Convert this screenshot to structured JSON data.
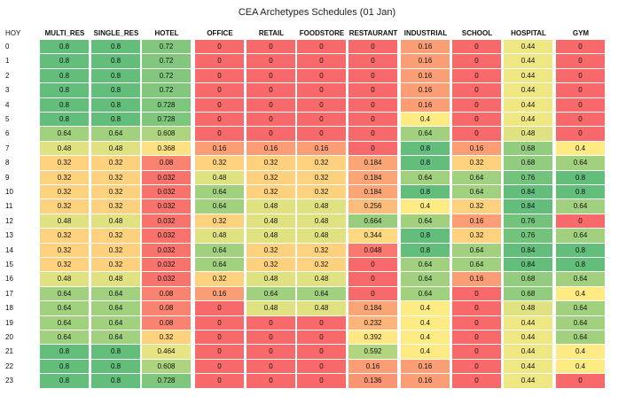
{
  "chart_data": {
    "type": "heatmap",
    "title": "CEA Archetypes Schedules (01 Jan)",
    "row_header": "HOY",
    "columns": [
      "MULTI_RES",
      "SINGLE_RES",
      "HOTEL",
      "OFFICE",
      "RETAIL",
      "FOODSTORE",
      "RESTAURANT",
      "INDUSTRIAL",
      "SCHOOL",
      "HOSPITAL",
      "GYM"
    ],
    "rows": [
      "0",
      "1",
      "2",
      "3",
      "4",
      "5",
      "6",
      "7",
      "8",
      "9",
      "10",
      "11",
      "12",
      "13",
      "14",
      "15",
      "16",
      "17",
      "18",
      "19",
      "20",
      "21",
      "22",
      "23"
    ],
    "values": [
      [
        0.8,
        0.8,
        0.72,
        0,
        0,
        0,
        0,
        0.16,
        0,
        0.44,
        0
      ],
      [
        0.8,
        0.8,
        0.72,
        0,
        0,
        0,
        0,
        0.16,
        0,
        0.44,
        0
      ],
      [
        0.8,
        0.8,
        0.72,
        0,
        0,
        0,
        0,
        0.16,
        0,
        0.44,
        0
      ],
      [
        0.8,
        0.8,
        0.72,
        0,
        0,
        0,
        0,
        0.16,
        0,
        0.44,
        0
      ],
      [
        0.8,
        0.8,
        0.728,
        0,
        0,
        0,
        0,
        0.16,
        0,
        0.44,
        0
      ],
      [
        0.8,
        0.8,
        0.728,
        0,
        0,
        0,
        0,
        0.4,
        0,
        0.44,
        0
      ],
      [
        0.64,
        0.64,
        0.608,
        0,
        0,
        0,
        0,
        0.64,
        0,
        0.48,
        0
      ],
      [
        0.48,
        0.48,
        0.368,
        0.16,
        0.16,
        0.16,
        0,
        0.8,
        0.16,
        0.68,
        0.4
      ],
      [
        0.32,
        0.32,
        0.08,
        0.32,
        0.32,
        0.32,
        0.184,
        0.8,
        0.32,
        0.68,
        0.64
      ],
      [
        0.32,
        0.32,
        0.032,
        0.48,
        0.32,
        0.32,
        0.184,
        0.64,
        0.64,
        0.76,
        0.8
      ],
      [
        0.32,
        0.32,
        0.032,
        0.64,
        0.32,
        0.32,
        0.184,
        0.8,
        0.64,
        0.84,
        0.8
      ],
      [
        0.32,
        0.32,
        0.032,
        0.64,
        0.48,
        0.48,
        0.256,
        0.4,
        0.32,
        0.84,
        0.64
      ],
      [
        0.48,
        0.48,
        0.032,
        0.32,
        0.48,
        0.48,
        0.664,
        0.64,
        0.16,
        0.76,
        0
      ],
      [
        0.32,
        0.32,
        0.032,
        0.48,
        0.48,
        0.48,
        0.344,
        0.8,
        0.32,
        0.76,
        0.64
      ],
      [
        0.32,
        0.32,
        0.032,
        0.64,
        0.32,
        0.32,
        0.048,
        0.8,
        0.64,
        0.84,
        0.8
      ],
      [
        0.32,
        0.32,
        0.032,
        0.64,
        0.32,
        0.32,
        0,
        0.64,
        0.64,
        0.84,
        0.8
      ],
      [
        0.48,
        0.48,
        0.032,
        0.32,
        0.48,
        0.48,
        0,
        0.64,
        0.16,
        0.68,
        0.64
      ],
      [
        0.64,
        0.64,
        0.08,
        0.16,
        0.64,
        0.64,
        0,
        0.64,
        0,
        0.68,
        0.4
      ],
      [
        0.64,
        0.64,
        0.08,
        0,
        0.48,
        0.48,
        0.184,
        0.4,
        0,
        0.48,
        0.64
      ],
      [
        0.64,
        0.64,
        0.08,
        0,
        0,
        0,
        0.232,
        0.4,
        0,
        0.44,
        0.64
      ],
      [
        0.64,
        0.64,
        0.32,
        0,
        0,
        0,
        0.392,
        0.4,
        0,
        0.44,
        0.64
      ],
      [
        0.8,
        0.8,
        0.464,
        0,
        0,
        0,
        0.592,
        0.4,
        0,
        0.44,
        0.4
      ],
      [
        0.8,
        0.8,
        0.608,
        0,
        0,
        0,
        0.16,
        0.16,
        0,
        0.44,
        0.4
      ],
      [
        0.8,
        0.8,
        0.728,
        0,
        0,
        0,
        0.136,
        0.16,
        0,
        0.44,
        0
      ]
    ],
    "color_scale": {
      "low": "#f8696b",
      "mid": "#ffeb84",
      "high": "#63be7b"
    },
    "color_range": [
      0,
      0.8
    ]
  }
}
